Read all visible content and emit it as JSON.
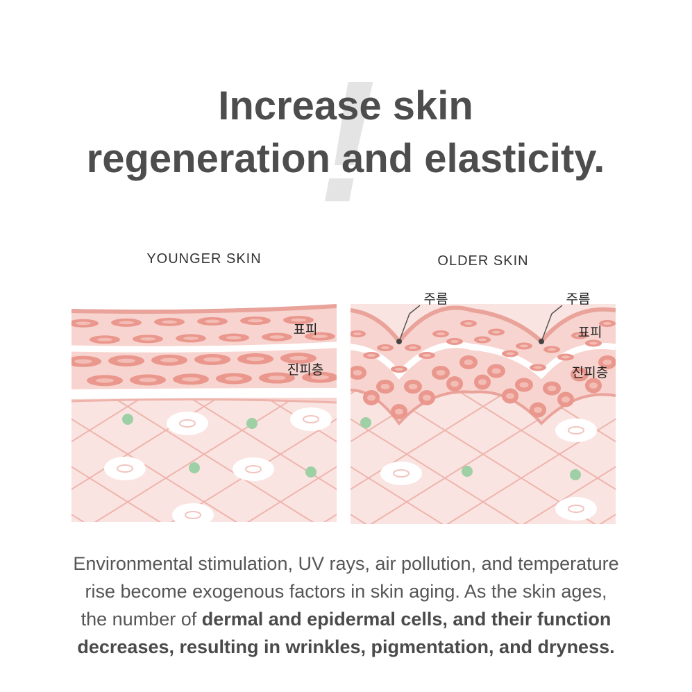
{
  "header": {
    "exclamation": "!",
    "title_lines": [
      "Increase skin",
      "regeneration and elasticity."
    ]
  },
  "panels": [
    {
      "title": "YOUNGER SKIN",
      "labels": [
        "표피",
        "진피층"
      ]
    },
    {
      "title": "OLDER SKIN",
      "wrinkle_labels": [
        "주름",
        "주름"
      ],
      "labels": [
        "표피",
        "진피층"
      ]
    }
  ],
  "body": {
    "lines": [
      [
        {
          "text": "Environmental stimulation, UV rays, air pollution, and temperature",
          "bold": false
        }
      ],
      [
        {
          "text": "rise become exogenous factors in skin aging. As the skin ages,",
          "bold": false
        }
      ],
      [
        {
          "text": "the number of ",
          "bold": false
        },
        {
          "text": "dermal and epidermal cells, and their  function",
          "bold": true
        }
      ],
      [
        {
          "text": "decreases, resulting in wrinkles, pigmentation, and dryness.",
          "bold": true
        }
      ]
    ]
  }
}
